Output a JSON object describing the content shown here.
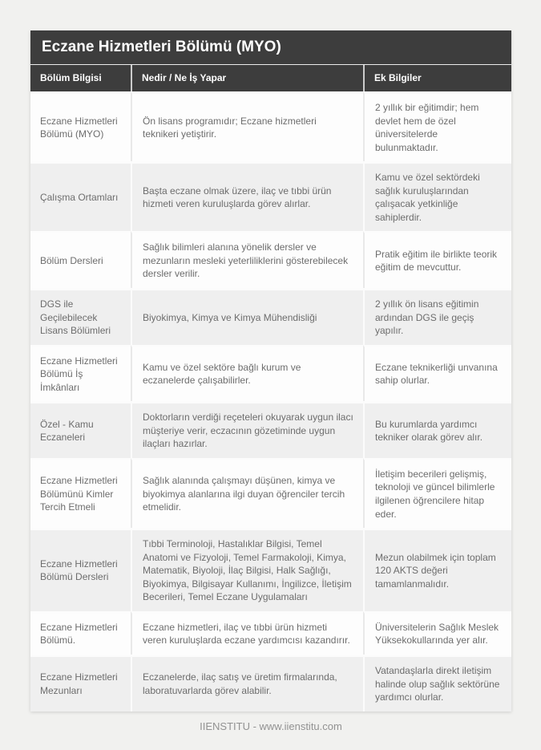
{
  "page": {
    "title": "Eczane Hizmetleri Bölümü (MYO)",
    "footer": "IIENSTITU - www.iienstitu.com"
  },
  "table": {
    "columns": [
      "Bölüm Bilgisi",
      "Nedir / Ne İş Yapar",
      "Ek Bilgiler"
    ],
    "rows": [
      [
        "Eczane Hizmetleri Bölümü (MYO)",
        "Ön lisans programıdır; Eczane hizmetleri teknikeri yetiştirir.",
        "2 yıllık bir eğitimdir; hem devlet hem de özel üniversitelerde bulunmaktadır."
      ],
      [
        "Çalışma Ortamları",
        "Başta eczane olmak üzere, ilaç ve tıbbi ürün hizmeti veren kuruluşlarda görev alırlar.",
        "Kamu ve özel sektördeki sağlık kuruluşlarından çalışacak yetkinliğe sahiplerdir."
      ],
      [
        "Bölüm Dersleri",
        "Sağlık bilimleri alanına yönelik dersler ve mezunların mesleki yeterliliklerini gösterebilecek dersler verilir.",
        "Pratik eğitim ile birlikte teorik eğitim de mevcuttur."
      ],
      [
        "DGS ile Geçilebilecek Lisans Bölümleri",
        "Biyokimya, Kimya ve Kimya Mühendisliği",
        "2 yıllık ön lisans eğitimin ardından DGS ile geçiş yapılır."
      ],
      [
        "Eczane Hizmetleri Bölümü İş İmkânları",
        "Kamu ve özel sektöre bağlı kurum ve eczanelerde çalışabilirler.",
        "Eczane teknikerliği unvanına sahip olurlar."
      ],
      [
        "Özel - Kamu Eczaneleri",
        "Doktorların verdiği reçeteleri okuyarak uygun ilacı müşteriye verir, eczacının gözetiminde uygun ilaçları hazırlar.",
        "Bu kurumlarda yardımcı tekniker olarak görev alır."
      ],
      [
        "Eczane Hizmetleri Bölümünü Kimler Tercih Etmeli",
        "Sağlık alanında çalışmayı düşünen, kimya ve biyokimya alanlarına ilgi duyan öğrenciler tercih etmelidir.",
        "İletişim becerileri gelişmiş, teknoloji ve güncel bilimlerle ilgilenen öğrencilere hitap eder."
      ],
      [
        "Eczane Hizmetleri Bölümü Dersleri",
        "Tıbbi Terminoloji, Hastalıklar Bilgisi, Temel Anatomi ve Fizyoloji, Temel Farmakoloji, Kimya, Matematik, Biyoloji, İlaç Bilgisi, Halk Sağlığı, Biyokimya, Bilgisayar Kullanımı, İngilizce, İletişim Becerileri, Temel Eczane Uygulamaları",
        "Mezun olabilmek için toplam 120 AKTS değeri tamamlanmalıdır."
      ],
      [
        "Eczane Hizmetleri Bölümü.",
        "Eczane hizmetleri, ilaç ve tıbbi ürün hizmeti veren kuruluşlarda eczane yardımcısı kazandırır.",
        "Üniversitelerin Sağlık Meslek Yüksekokullarında yer alır."
      ],
      [
        "Eczane Hizmetleri Mezunları",
        "Eczanelerde, ilaç satış ve üretim firmalarında, laboratuvarlarda görev alabilir.",
        "Vatandaşlarla direkt iletişim halinde olup sağlık sektörüne yardımcı olurlar."
      ]
    ]
  },
  "colors": {
    "header_bg": "#3d3d3d",
    "page_bg": "#f1f1ef",
    "row_bg": "#fdfdfd",
    "row_alt_bg": "#efefef",
    "body_text": "#6d6d6d",
    "header_text": "#ffffff",
    "footer_text": "#929292"
  }
}
